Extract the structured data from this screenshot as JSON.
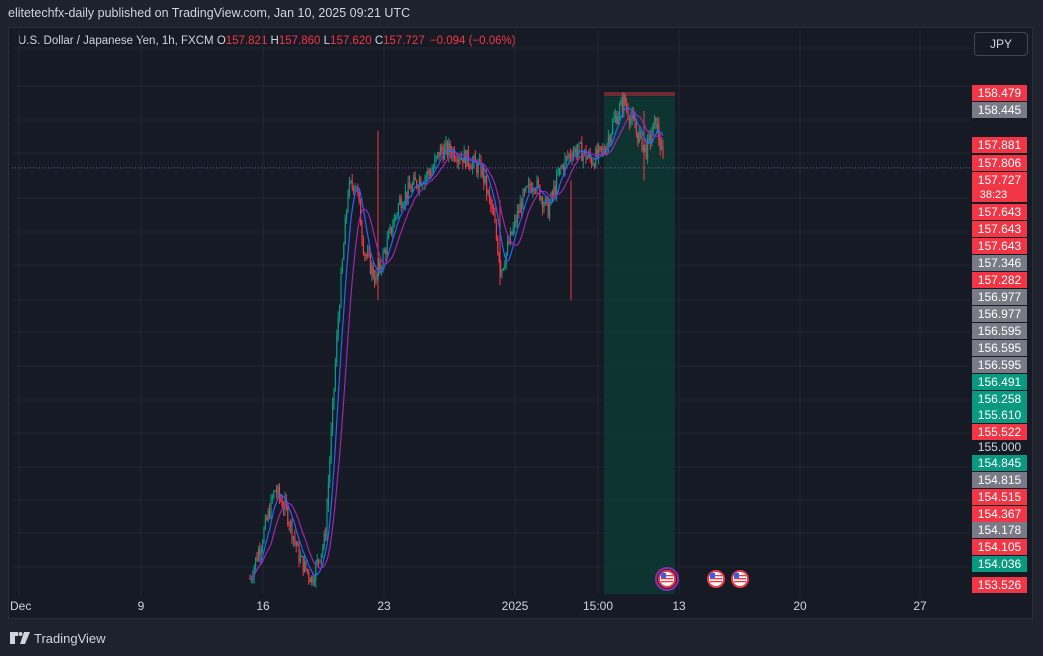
{
  "header": {
    "published_line": "elitetechfx-daily published on TradingView.com, Jan 10, 2025 09:21 UTC"
  },
  "legend": {
    "symbol": "U.S. Dollar / Japanese Yen, 1h, FXCM",
    "open_label": "O",
    "open_value": "157.821",
    "high_label": "H",
    "high_value": "157.860",
    "low_label": "L",
    "low_value": "157.620",
    "close_label": "C",
    "close_value": "157.727",
    "change": "−0.094 (−0.06%)"
  },
  "currency_button": "JPY",
  "colors": {
    "up": "#089981",
    "down": "#f23645",
    "neutral_badge": "#787b86",
    "ma_fast": "#2962ff",
    "ma_slow": "#9c27b0",
    "position_fill": "#0c3a34",
    "background": "#161a25"
  },
  "time_axis": {
    "labels": [
      "Dec",
      "9",
      "16",
      "23",
      "2025",
      "15:00",
      "13",
      "20",
      "27"
    ]
  },
  "price_axis": {
    "current_price": "157.727",
    "countdown": "38:23",
    "badges": [
      {
        "text": "158.479",
        "style": "red"
      },
      {
        "text": "158.445",
        "style": "gray"
      },
      {
        "text": "157.881",
        "style": "red"
      },
      {
        "text": "157.806",
        "style": "red"
      },
      {
        "text": "157.727",
        "style": "red-current"
      },
      {
        "text": "157.643",
        "style": "red"
      },
      {
        "text": "157.643",
        "style": "red"
      },
      {
        "text": "157.643",
        "style": "red"
      },
      {
        "text": "157.346",
        "style": "gray"
      },
      {
        "text": "157.282",
        "style": "red"
      },
      {
        "text": "156.977",
        "style": "gray"
      },
      {
        "text": "156.977",
        "style": "gray"
      },
      {
        "text": "156.595",
        "style": "gray"
      },
      {
        "text": "156.595",
        "style": "gray"
      },
      {
        "text": "156.595",
        "style": "gray"
      },
      {
        "text": "156.491",
        "style": "green"
      },
      {
        "text": "156.258",
        "style": "green"
      },
      {
        "text": "155.610",
        "style": "green"
      },
      {
        "text": "155.522",
        "style": "red"
      },
      {
        "text": "155.000",
        "style": "plain"
      },
      {
        "text": "154.845",
        "style": "green"
      },
      {
        "text": "154.815",
        "style": "gray"
      },
      {
        "text": "154.515",
        "style": "red"
      },
      {
        "text": "154.367",
        "style": "red"
      },
      {
        "text": "154.178",
        "style": "gray"
      },
      {
        "text": "154.105",
        "style": "red"
      },
      {
        "text": "154.036",
        "style": "green"
      },
      {
        "text": "153.526",
        "style": "red"
      }
    ]
  },
  "events": [
    {
      "icon": "us-flag-icon",
      "highlighted": true
    },
    {
      "icon": "us-flag-icon",
      "highlighted": false
    },
    {
      "icon": "us-flag-icon",
      "highlighted": false
    }
  ],
  "chart_data": {
    "type": "candlestick",
    "symbol": "USDJPY",
    "timeframe": "1h",
    "x_ticks": [
      "Dec",
      "9",
      "16",
      "23",
      "2025",
      "15:00",
      "13",
      "20",
      "27"
    ],
    "ylim": [
      153.5,
      158.6
    ],
    "last_price": 157.727,
    "ohlc_last": {
      "open": 157.821,
      "high": 157.86,
      "low": 157.62,
      "close": 157.727
    },
    "approx_close_path": [
      {
        "x": "16",
        "y": 153.6
      },
      {
        "x": "16",
        "y": 154.2
      },
      {
        "x": "16",
        "y": 153.9
      },
      {
        "x": "16",
        "y": 153.7
      },
      {
        "x": "16",
        "y": 154.1
      },
      {
        "x": "23",
        "y": 157.7
      },
      {
        "x": "23",
        "y": 156.6
      },
      {
        "x": "23",
        "y": 157.3
      },
      {
        "x": "23",
        "y": 157.6
      },
      {
        "x": "23",
        "y": 157.9
      },
      {
        "x": "2025",
        "y": 157.7
      },
      {
        "x": "2025",
        "y": 156.6
      },
      {
        "x": "2025",
        "y": 157.5
      },
      {
        "x": "2025",
        "y": 157.3
      },
      {
        "x": "15:00",
        "y": 157.8
      },
      {
        "x": "15:00",
        "y": 158.1
      },
      {
        "x": "13",
        "y": 158.4
      },
      {
        "x": "13",
        "y": 157.73
      }
    ],
    "position_box": {
      "top_price": 158.445,
      "bottom_price": 153.5
    },
    "series_lines": [
      "moving average (fast)",
      "moving average (slow)"
    ],
    "grid": true
  },
  "footer": {
    "brand": "TradingView"
  }
}
